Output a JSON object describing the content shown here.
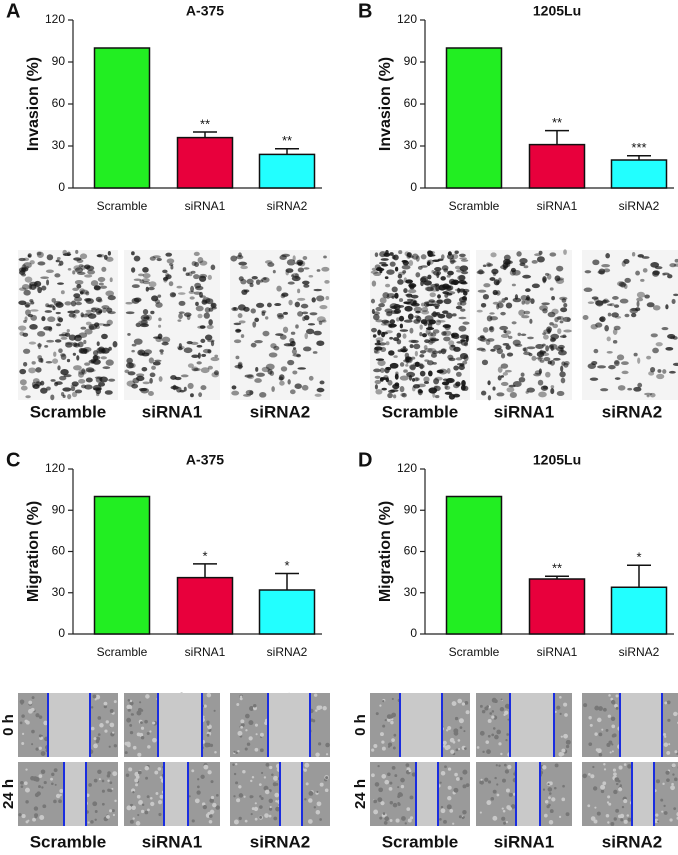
{
  "chart_data": [
    {
      "type": "bar",
      "panel": "A",
      "title": "A-375",
      "ylabel": "Invasion (%)",
      "categories": [
        "Scramble",
        "siRNA1",
        "siRNA2"
      ],
      "values": [
        100,
        36,
        24
      ],
      "errors": [
        0,
        4,
        4
      ],
      "significance": [
        null,
        "**",
        "**"
      ],
      "colors": [
        "#22ee22",
        "#e8003c",
        "#22ffff"
      ],
      "ylim": [
        0,
        120
      ],
      "yticks": [
        0,
        30,
        60,
        90,
        120
      ]
    },
    {
      "type": "bar",
      "panel": "B",
      "title": "1205Lu",
      "ylabel": "Invasion (%)",
      "categories": [
        "Scramble",
        "siRNA1",
        "siRNA2"
      ],
      "values": [
        100,
        31,
        20
      ],
      "errors": [
        0,
        10,
        3
      ],
      "significance": [
        null,
        "**",
        "***"
      ],
      "colors": [
        "#22ee22",
        "#e8003c",
        "#22ffff"
      ],
      "ylim": [
        0,
        120
      ],
      "yticks": [
        0,
        30,
        60,
        90,
        120
      ]
    },
    {
      "type": "bar",
      "panel": "C",
      "title": "A-375",
      "ylabel": "Migration (%)",
      "categories": [
        "Scramble",
        "siRNA1",
        "siRNA2"
      ],
      "values": [
        100,
        41,
        32
      ],
      "errors": [
        0,
        10,
        12
      ],
      "significance": [
        null,
        "*",
        "*"
      ],
      "colors": [
        "#22ee22",
        "#e8003c",
        "#22ffff"
      ],
      "ylim": [
        0,
        120
      ],
      "yticks": [
        0,
        30,
        60,
        90,
        120
      ]
    },
    {
      "type": "bar",
      "panel": "D",
      "title": "1205Lu",
      "ylabel": "Migration (%)",
      "categories": [
        "Scramble",
        "siRNA1",
        "siRNA2"
      ],
      "values": [
        100,
        40,
        34
      ],
      "errors": [
        0,
        2,
        16
      ],
      "significance": [
        null,
        "**",
        "*"
      ],
      "colors": [
        "#22ee22",
        "#e8003c",
        "#22ffff"
      ],
      "ylim": [
        0,
        120
      ],
      "yticks": [
        0,
        30,
        60,
        90,
        120
      ]
    }
  ],
  "image_panels": [
    {
      "labels": [
        "Scramble",
        "siRNA1",
        "siRNA2"
      ]
    },
    {
      "labels": [
        "Scramble",
        "siRNA1",
        "siRNA2"
      ]
    },
    {
      "labels": [
        "Scramble",
        "siRNA1",
        "siRNA2"
      ],
      "rows": [
        "0 h",
        "24 h"
      ]
    },
    {
      "labels": [
        "Scramble",
        "siRNA1",
        "siRNA2"
      ],
      "rows": [
        "0 h",
        "24 h"
      ]
    }
  ]
}
